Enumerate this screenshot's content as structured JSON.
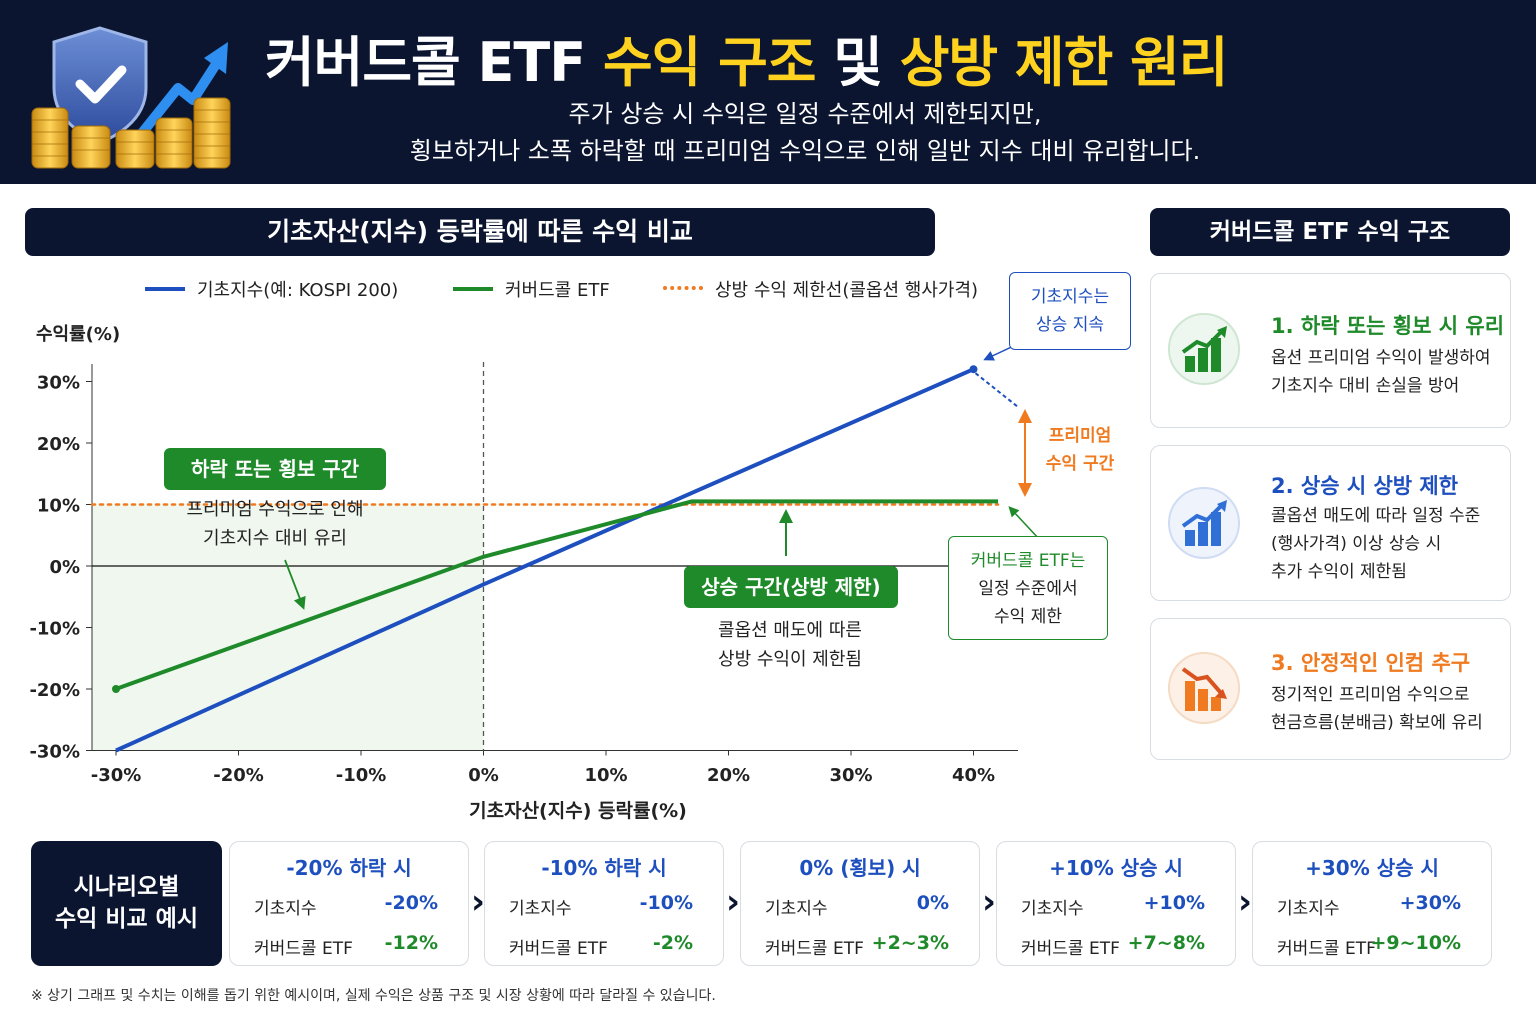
{
  "header": {
    "title_white_1": "커버드콜 ETF ",
    "title_yellow_1": "수익 구조",
    "title_white_2": " 및 ",
    "title_yellow_2": "상방 제한 원리",
    "subtitle_line1": "주가 상승 시 수익은 일정 수준에서 제한되지만,",
    "subtitle_line2": "횡보하거나 소폭 하락할 때 프리미엄 수익으로 인해 일반 지수 대비 유리합니다."
  },
  "left_section_title": "기초자산(지수) 등락률에 따른 수익 비교",
  "right_section_title": "커버드콜 ETF 수익 구조",
  "chart_data": {
    "type": "line",
    "xlabel": "기초자산(지수) 등락률(%)",
    "ylabel": "수익률(%)",
    "x_ticks": [
      "-30%",
      "-20%",
      "-10%",
      "0%",
      "10%",
      "20%",
      "30%",
      "40%"
    ],
    "y_ticks": [
      "30%",
      "20%",
      "10%",
      "0%",
      "-10%",
      "-20%",
      "-30%"
    ],
    "xlim": [
      -30,
      40
    ],
    "ylim": [
      -30,
      30
    ],
    "series": [
      {
        "name": "기초지수(예: KOSPI 200)",
        "color": "#1e4fbf",
        "x": [
          -30,
          0,
          40
        ],
        "y": [
          -30,
          -3,
          32
        ]
      },
      {
        "name": "커버드콜 ETF",
        "color": "#1f8a2a",
        "x": [
          -30,
          0,
          17,
          42
        ],
        "y": [
          -20,
          1.5,
          10.5,
          10.5
        ]
      },
      {
        "name": "상방 수익 제한선(콜옵션 행사가격)",
        "color": "#f07a1f",
        "style": "dotted",
        "x": [
          -30,
          42
        ],
        "y": [
          10,
          10
        ]
      }
    ],
    "legend_position": "top",
    "annotations": {
      "sideways_zone_label": "하락 또는 횡보 구간",
      "sideways_zone_line1": "프리미엄 수익으로 인해",
      "sideways_zone_line2": "기초지수 대비 유리",
      "up_zone_label": "상승 구간(상방 제한)",
      "up_zone_line1": "콜옵션 매도에 따른",
      "up_zone_line2": "상방 수익이 제한됨",
      "index_box_line1": "기초지수는",
      "index_box_line2": "상승 지속",
      "premium_line1": "프리미엄",
      "premium_line2": "수익 구간",
      "cc_box_line1": "커버드콜 ETF는",
      "cc_box_line2": "일정 수준에서",
      "cc_box_line3": "수익 제한"
    }
  },
  "cards": [
    {
      "title": "1. 하락 또는 횡보 시 유리",
      "color": "#1f8a2a",
      "line1": "옵션 프리미엄 수익이 발생하여",
      "line2": "기초지수 대비 손실을 방어",
      "line3": ""
    },
    {
      "title": "2. 상승 시 상방 제한",
      "color": "#1e4fbf",
      "line1": "콜옵션 매도에 따라 일정 수준",
      "line2": "(행사가격) 이상 상승 시",
      "line3": "추가 수익이 제한됨"
    },
    {
      "title": "3. 안정적인 인컴 추구",
      "color": "#f07a1f",
      "line1": "정기적인 프리미엄 수익으로",
      "line2": "현금흐름(분배금) 확보에 유리",
      "line3": ""
    }
  ],
  "scenario": {
    "label_line1": "시나리오별",
    "label_line2": "수익 비교 예시",
    "row1_label": "기초지수",
    "row2_label": "커버드콜 ETF",
    "items": [
      {
        "head": "-20% 하락 시",
        "index": "-20%",
        "cc": "-12%"
      },
      {
        "head": "-10% 하락 시",
        "index": "-10%",
        "cc": "-2%"
      },
      {
        "head": "0% (횡보) 시",
        "index": "0%",
        "cc": "+2~3%"
      },
      {
        "head": "+10% 상승 시",
        "index": "+10%",
        "cc": "+7~8%"
      },
      {
        "head": "+30% 상승 시",
        "index": "+30%",
        "cc": "+9~10%"
      }
    ]
  },
  "footnote": "※ 상기 그래프 및 수치는 이해를 돕기 위한 예시이며, 실제 수익은 상품 구조 및 시장 상황에 따라 달라질 수 있습니다.",
  "icons": {
    "logo": "shield-check-coins-icon",
    "card1": "green-bar-chart-icon",
    "card2": "blue-bar-chart-icon",
    "card3": "orange-down-chart-icon"
  }
}
